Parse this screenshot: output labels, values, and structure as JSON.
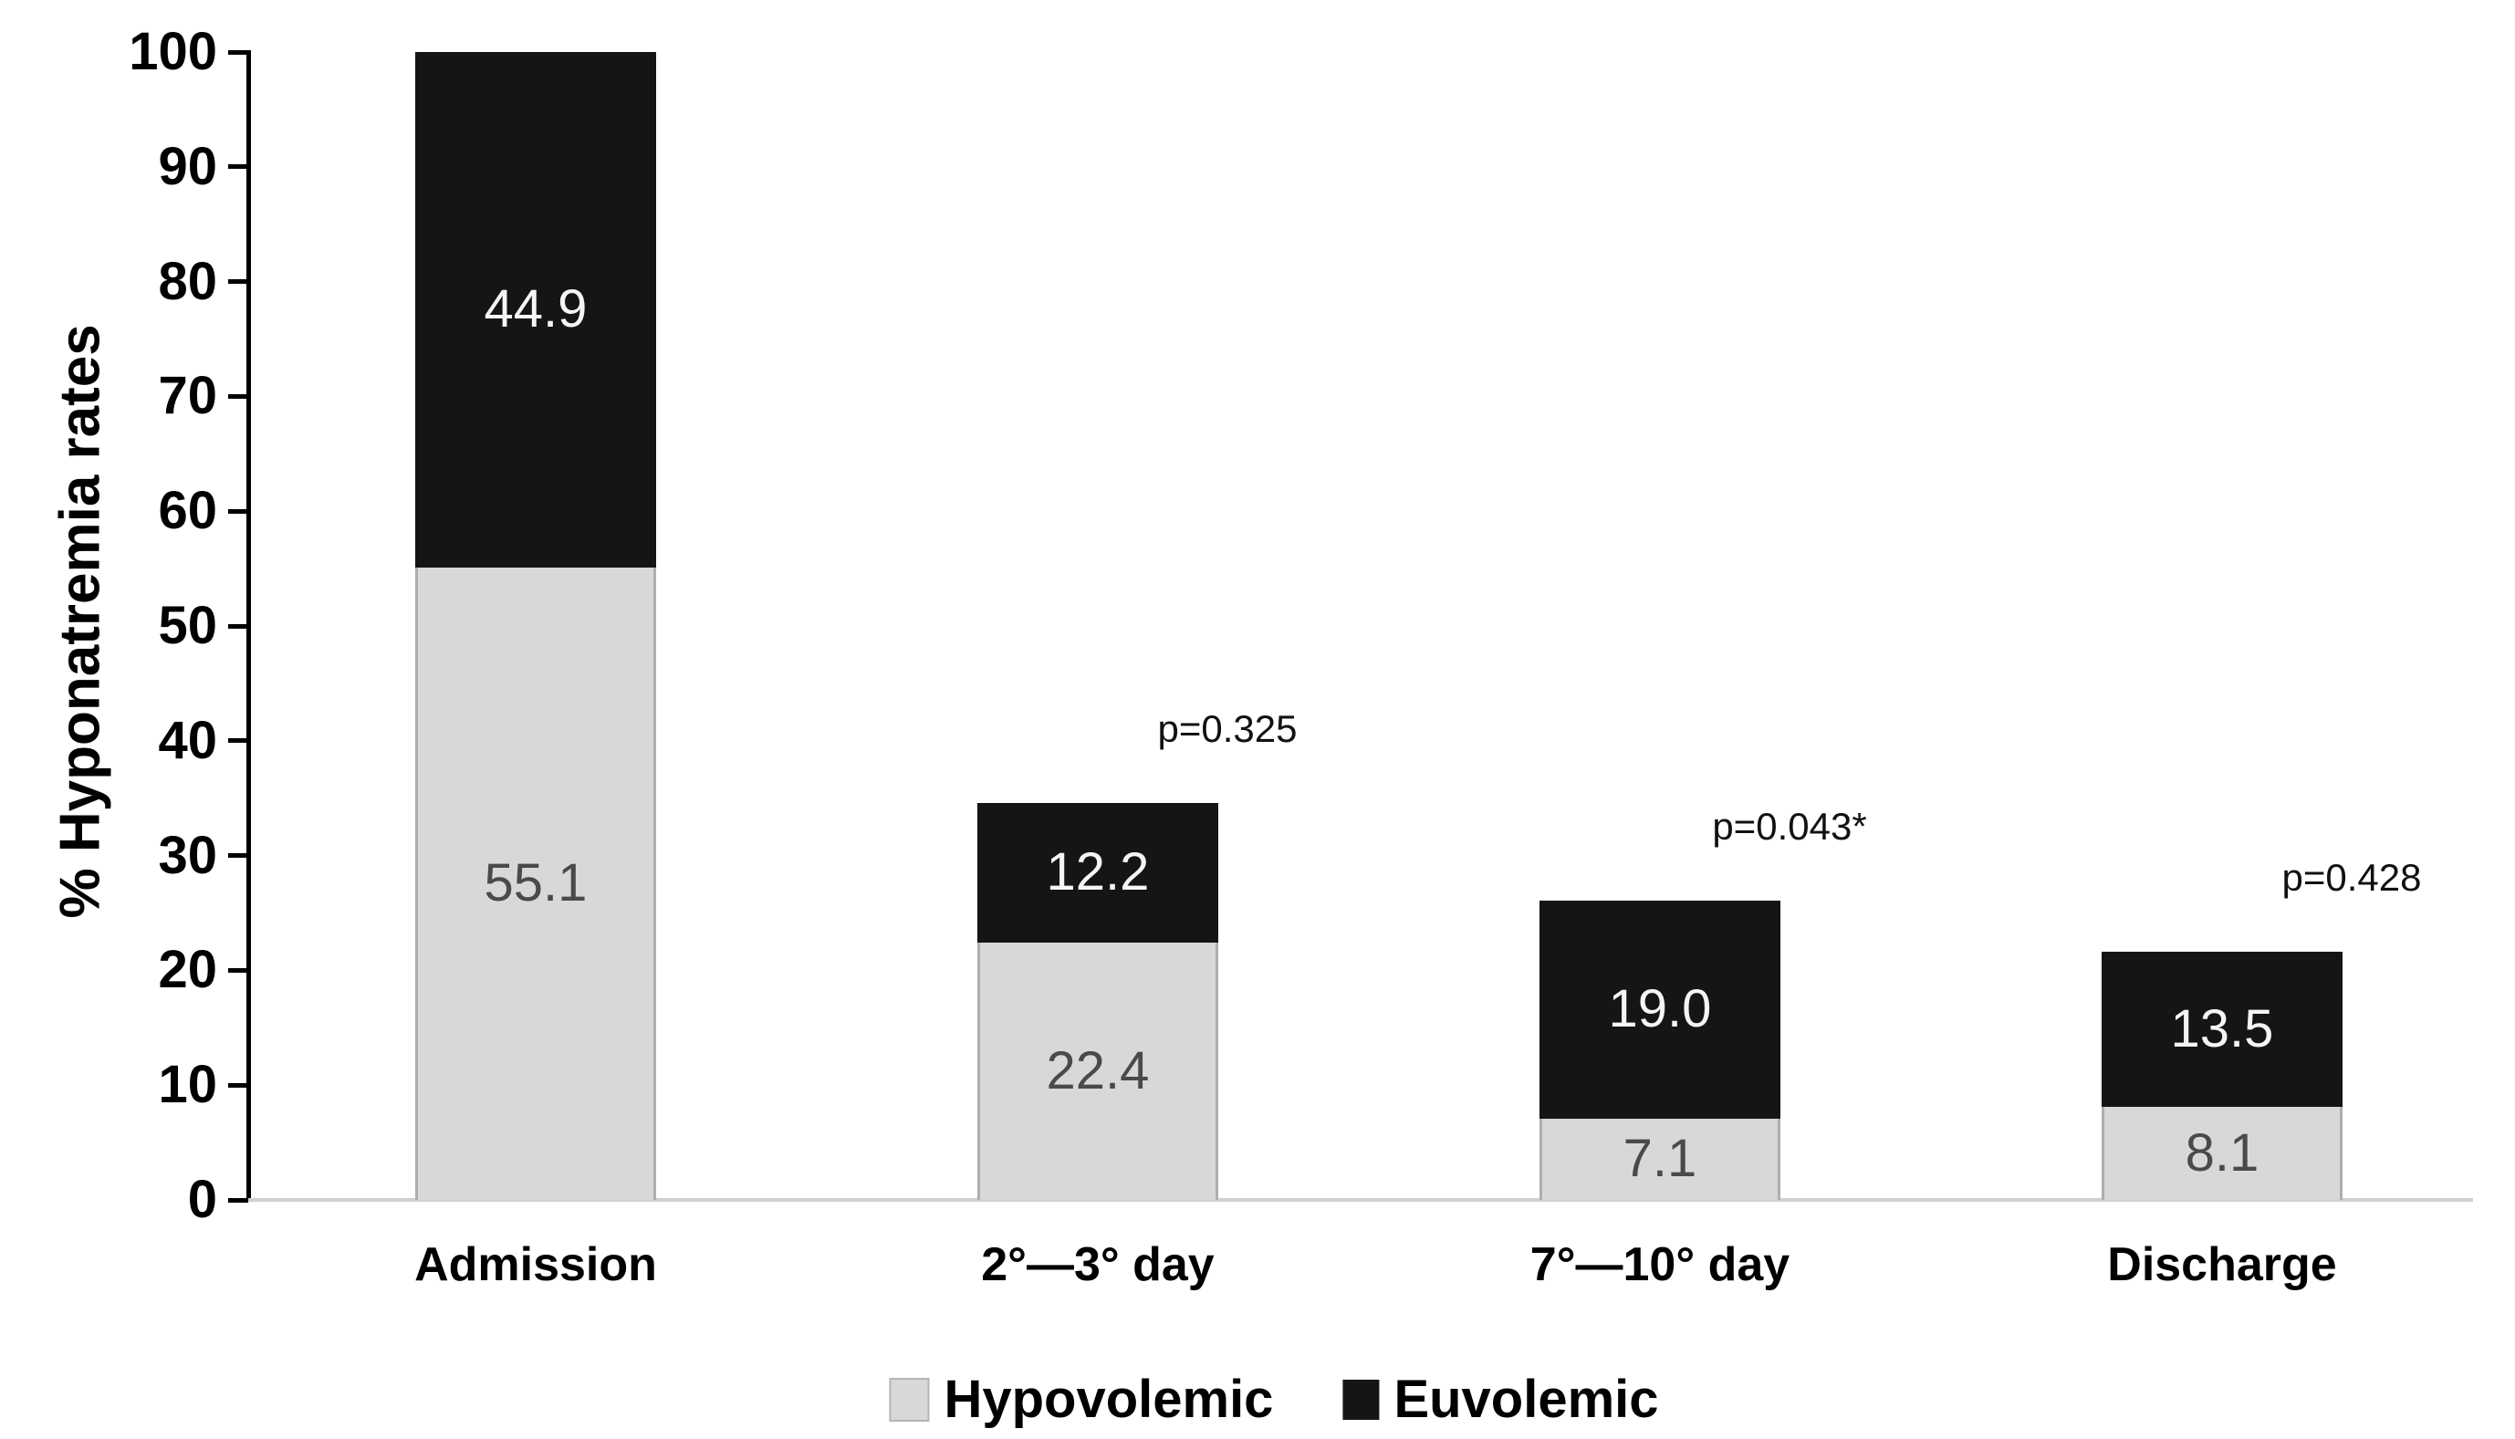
{
  "chart_data": {
    "type": "bar",
    "stacked": true,
    "title": "",
    "ylabel": "% Hyponatremia rates",
    "xlabel": "",
    "ylim": [
      0,
      100
    ],
    "yticks": [
      0,
      10,
      20,
      30,
      40,
      50,
      60,
      70,
      80,
      90,
      100
    ],
    "grid": false,
    "categories": [
      "Admission",
      "2°—3° day",
      "7°—10° day",
      "Discharge"
    ],
    "series": [
      {
        "name": "Hypovolemic",
        "color": "#d8d8d8",
        "label_color": "#4a4a4a",
        "values": [
          55.1,
          22.4,
          7.1,
          8.1
        ],
        "value_labels": [
          "55.1",
          "22.4",
          "7.1",
          "8.1"
        ]
      },
      {
        "name": "Euvolemic",
        "color": "#151515",
        "label_color": "#f5f5f5",
        "values": [
          44.9,
          12.2,
          19.0,
          13.5
        ],
        "value_labels": [
          "44.9",
          "12.2",
          "19.0",
          "13.5"
        ]
      }
    ],
    "bar_totals": [
      100.0,
      34.6,
      26.1,
      21.6
    ],
    "annotations": [
      {
        "category_index": 1,
        "text": "p=0.325"
      },
      {
        "category_index": 2,
        "text": "p=0.043*"
      },
      {
        "category_index": 3,
        "text": "p=0.428"
      }
    ],
    "legend": {
      "position": "bottom",
      "items": [
        "Hypovolemic",
        "Euvolemic"
      ]
    }
  }
}
